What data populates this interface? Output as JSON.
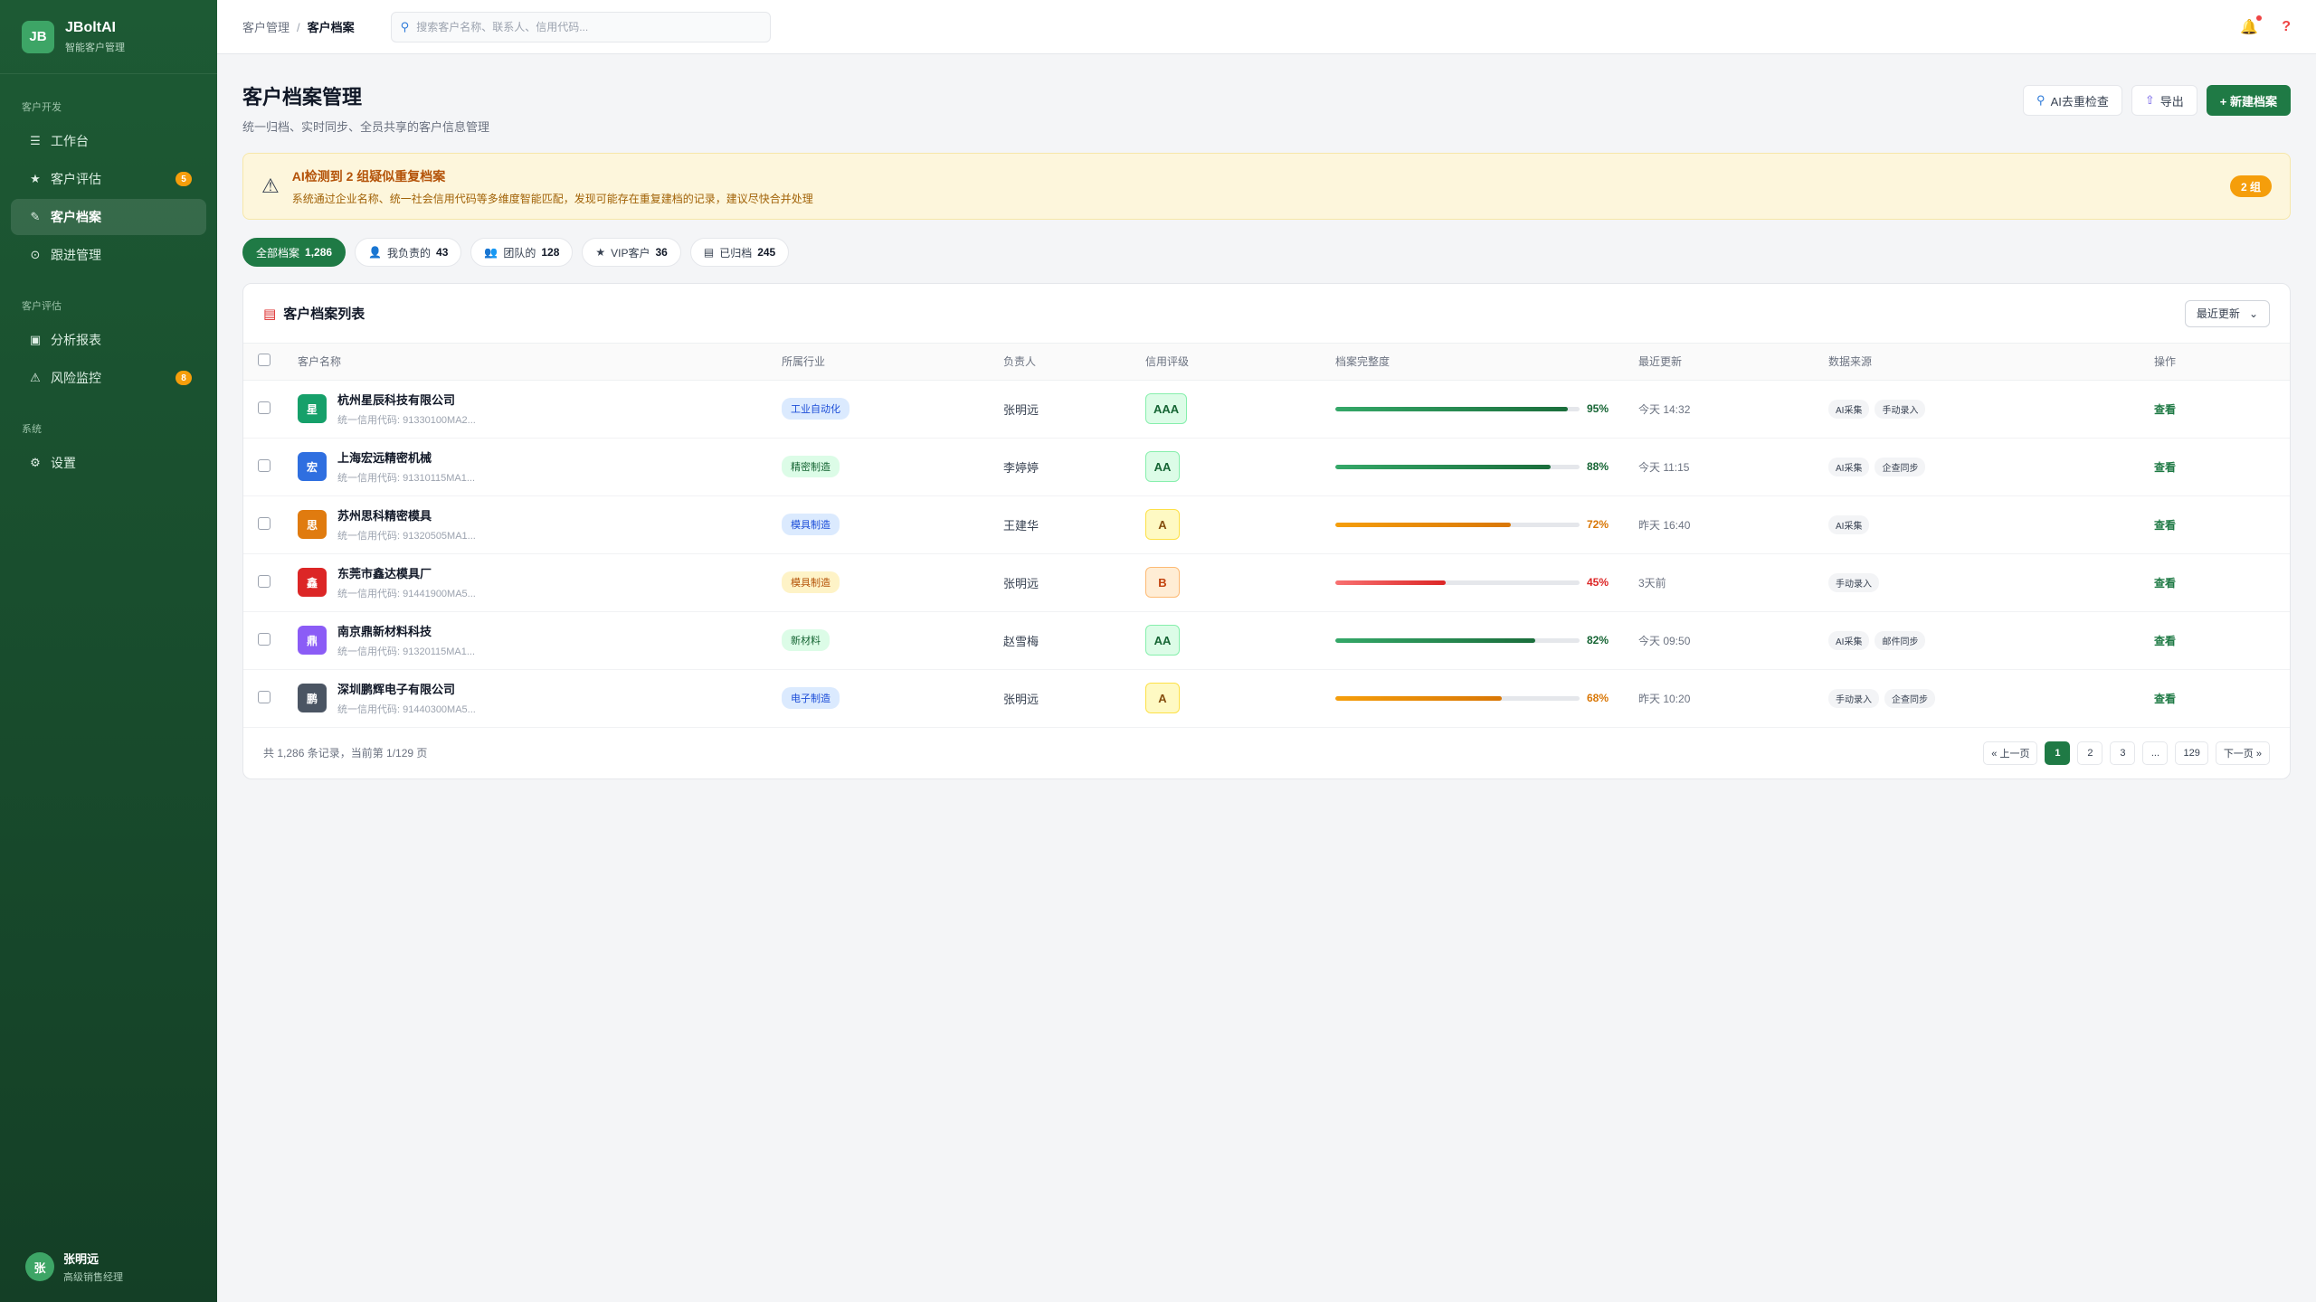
{
  "brand": {
    "logo": "JB",
    "title": "JBoltAI",
    "subtitle": "智能客户管理"
  },
  "sidebar": {
    "sections": [
      {
        "label": "客户开发",
        "items": [
          {
            "label": "工作台",
            "icon": "☰",
            "icon_name": "menu-icon",
            "badge": ""
          },
          {
            "label": "客户评估",
            "icon": "★",
            "icon_name": "star-icon",
            "badge": "5"
          },
          {
            "label": "客户档案",
            "icon": "✎",
            "icon_name": "pen-icon",
            "badge": "",
            "active": true
          },
          {
            "label": "跟进管理",
            "icon": "⊙",
            "icon_name": "target-icon",
            "badge": ""
          }
        ]
      },
      {
        "label": "客户评估",
        "items": [
          {
            "label": "分析报表",
            "icon": "▣",
            "icon_name": "chart-icon",
            "badge": ""
          },
          {
            "label": "风险监控",
            "icon": "⚠",
            "icon_name": "warning-icon",
            "badge": "8"
          }
        ]
      },
      {
        "label": "系统",
        "items": [
          {
            "label": "设置",
            "icon": "⚙",
            "icon_name": "gear-icon",
            "badge": ""
          }
        ]
      }
    ]
  },
  "user": {
    "avatar": "张",
    "name": "张明远",
    "role": "高级销售经理"
  },
  "topbar": {
    "breadcrumb": [
      "客户管理",
      "客户档案"
    ],
    "search_placeholder": "搜索客户名称、联系人、信用代码..."
  },
  "page": {
    "title": "客户档案管理",
    "subtitle": "统一归档、实时同步、全员共享的客户信息管理",
    "actions": {
      "ai_check": "AI去重检查",
      "export": "导出",
      "create": "+ 新建档案"
    }
  },
  "alert": {
    "title": "AI检测到 2 组疑似重复档案",
    "desc": "系统通过企业名称、统一社会信用代码等多维度智能匹配，发现可能存在重复建档的记录，建议尽快合并处理",
    "badge": "2 组"
  },
  "filters": [
    {
      "label": "全部档案",
      "count": "1,286",
      "icon": "",
      "active": true
    },
    {
      "label": "我负责的",
      "count": "43",
      "icon": "👤"
    },
    {
      "label": "团队的",
      "count": "128",
      "icon": "👥"
    },
    {
      "label": "VIP客户",
      "count": "36",
      "icon": "★"
    },
    {
      "label": "已归档",
      "count": "245",
      "icon": "▤"
    }
  ],
  "table": {
    "title": "客户档案列表",
    "sort_label": "最近更新",
    "headers": [
      "客户名称",
      "所属行业",
      "负责人",
      "信用评级",
      "档案完整度",
      "最近更新",
      "数据来源",
      "操作"
    ],
    "rows": [
      {
        "avatar": "星",
        "avatar_color": "#16a06a",
        "name": "杭州星辰科技有限公司",
        "code": "统一信用代码: 91330100MA2...",
        "industry": "工业自动化",
        "ind_bg": "#dbeafe",
        "ind_fg": "#1d4ed8",
        "owner": "张明远",
        "rating": "AAA",
        "r_bg": "#dcfce7",
        "r_fg": "#166534",
        "r_bd": "#86efac",
        "completeness": 95,
        "bar_color": "linear-gradient(90deg,#34a868,#1b6e3c)",
        "pct_color": "#166534",
        "updated": "今天 14:32",
        "sources": [
          "AI采集",
          "手动录入"
        ],
        "action": "查看"
      },
      {
        "avatar": "宏",
        "avatar_color": "#2f6fe0",
        "name": "上海宏远精密机械",
        "code": "统一信用代码: 91310115MA1...",
        "industry": "精密制造",
        "ind_bg": "#dcfce7",
        "ind_fg": "#166534",
        "owner": "李婷婷",
        "rating": "AA",
        "r_bg": "#dcfce7",
        "r_fg": "#166534",
        "r_bd": "#86efac",
        "completeness": 88,
        "bar_color": "linear-gradient(90deg,#34a868,#1b6e3c)",
        "pct_color": "#166534",
        "updated": "今天 11:15",
        "sources": [
          "AI采集",
          "企查同步"
        ],
        "action": "查看"
      },
      {
        "avatar": "思",
        "avatar_color": "#e07b0f",
        "name": "苏州思科精密模具",
        "code": "统一信用代码: 91320505MA1...",
        "industry": "模具制造",
        "ind_bg": "#dbeafe",
        "ind_fg": "#1d4ed8",
        "owner": "王建华",
        "rating": "A",
        "r_bg": "#fef9c3",
        "r_fg": "#854d0e",
        "r_bd": "#fde047",
        "completeness": 72,
        "bar_color": "linear-gradient(90deg,#f59e0b,#d97706)",
        "pct_color": "#d97706",
        "updated": "昨天 16:40",
        "sources": [
          "AI采集"
        ],
        "action": "查看"
      },
      {
        "avatar": "鑫",
        "avatar_color": "#dc2626",
        "name": "东莞市鑫达模具厂",
        "code": "统一信用代码: 91441900MA5...",
        "industry": "模具制造",
        "ind_bg": "#fef3c7",
        "ind_fg": "#b45309",
        "owner": "张明远",
        "rating": "B",
        "r_bg": "#ffedd5",
        "r_fg": "#c2410c",
        "r_bd": "#fdba74",
        "completeness": 45,
        "bar_color": "linear-gradient(90deg,#f87171,#dc2626)",
        "pct_color": "#dc2626",
        "updated": "3天前",
        "sources": [
          "手动录入"
        ],
        "action": "查看"
      },
      {
        "avatar": "鼎",
        "avatar_color": "#8b5cf6",
        "name": "南京鼎新材料科技",
        "code": "统一信用代码: 91320115MA1...",
        "industry": "新材料",
        "ind_bg": "#dcfce7",
        "ind_fg": "#166534",
        "owner": "赵雪梅",
        "rating": "AA",
        "r_bg": "#dcfce7",
        "r_fg": "#166534",
        "r_bd": "#86efac",
        "completeness": 82,
        "bar_color": "linear-gradient(90deg,#34a868,#1b6e3c)",
        "pct_color": "#166534",
        "updated": "今天 09:50",
        "sources": [
          "AI采集",
          "邮件同步"
        ],
        "action": "查看"
      },
      {
        "avatar": "鹏",
        "avatar_color": "#4b5563",
        "name": "深圳鹏辉电子有限公司",
        "code": "统一信用代码: 91440300MA5...",
        "industry": "电子制造",
        "ind_bg": "#dbeafe",
        "ind_fg": "#1d4ed8",
        "owner": "张明远",
        "rating": "A",
        "r_bg": "#fef9c3",
        "r_fg": "#854d0e",
        "r_bd": "#fde047",
        "completeness": 68,
        "bar_color": "linear-gradient(90deg,#f59e0b,#d97706)",
        "pct_color": "#d97706",
        "updated": "昨天 10:20",
        "sources": [
          "手动录入",
          "企查同步"
        ],
        "action": "查看"
      }
    ],
    "footer": "共 1,286 条记录，当前第 1/129 页",
    "pager": [
      "« 上一页",
      "1",
      "2",
      "3",
      "...",
      "129",
      "下一页 »"
    ]
  }
}
